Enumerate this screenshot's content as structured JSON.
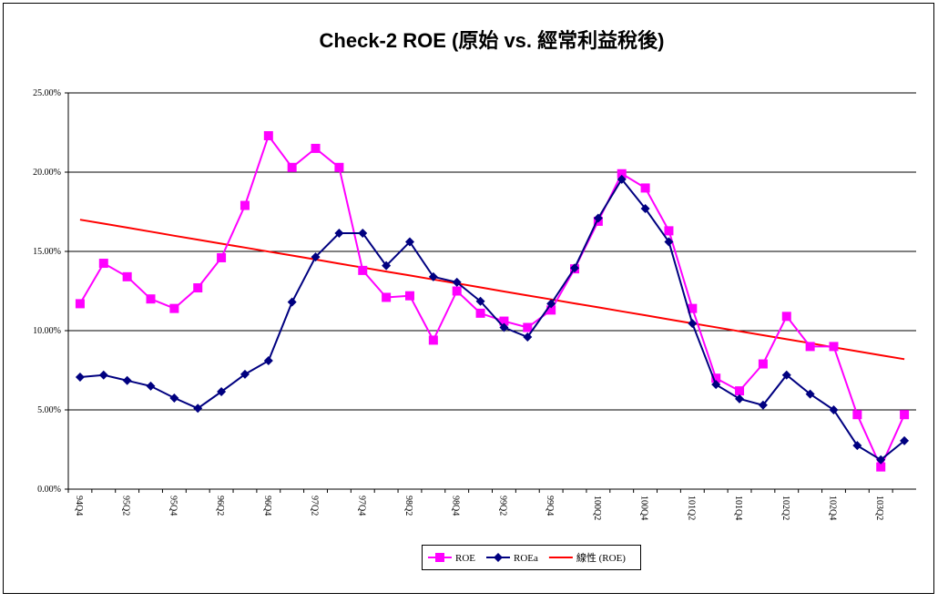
{
  "chart_data": {
    "type": "line",
    "title": "Check-2 ROE (原始 vs. 經常利益稅後)",
    "categories": [
      "94Q4",
      null,
      "95Q2",
      null,
      "95Q4",
      null,
      "96Q2",
      null,
      "96Q4",
      null,
      "97Q2",
      null,
      "97Q4",
      null,
      "98Q2",
      null,
      "98Q4",
      null,
      "99Q2",
      null,
      "99Q4",
      null,
      "100Q2",
      null,
      "100Q4",
      null,
      "101Q2",
      null,
      "101Q4",
      null,
      "102Q2",
      null,
      "102Q4",
      null,
      "103Q2",
      null
    ],
    "series": [
      {
        "name": "ROE",
        "color": "#ff00ff",
        "marker": "square",
        "values": [
          11.7,
          14.25,
          13.4,
          12.0,
          11.4,
          12.7,
          14.6,
          17.9,
          22.3,
          20.3,
          21.5,
          20.3,
          13.8,
          12.1,
          12.2,
          9.4,
          12.5,
          11.1,
          10.6,
          10.2,
          11.3,
          13.9,
          16.9,
          19.9,
          19.0,
          16.3,
          11.4,
          7.0,
          6.2,
          7.9,
          10.9,
          9.0,
          9.0,
          4.7,
          1.4,
          4.7
        ]
      },
      {
        "name": "ROEa",
        "color": "#000080",
        "marker": "diamond",
        "values": [
          7.07,
          7.2,
          6.85,
          6.5,
          5.75,
          5.1,
          6.15,
          7.25,
          8.1,
          11.8,
          14.65,
          16.15,
          16.15,
          14.1,
          15.6,
          13.4,
          13.05,
          11.85,
          10.2,
          9.6,
          11.7,
          13.95,
          17.1,
          19.55,
          17.7,
          15.6,
          10.45,
          6.6,
          5.7,
          5.3,
          7.2,
          6.0,
          5.0,
          2.75,
          1.85,
          3.05
        ]
      },
      {
        "name": "線性 (ROE)",
        "color": "#ff0000",
        "marker": "none",
        "values": [
          17.0,
          16.75,
          16.5,
          16.25,
          15.99,
          15.74,
          15.49,
          15.24,
          14.99,
          14.74,
          14.49,
          14.23,
          13.98,
          13.73,
          13.48,
          13.23,
          12.98,
          12.73,
          12.47,
          12.22,
          11.97,
          11.72,
          11.47,
          11.22,
          10.97,
          10.71,
          10.46,
          10.21,
          9.96,
          9.71,
          9.46,
          9.21,
          8.95,
          8.7,
          8.45,
          8.2
        ]
      }
    ],
    "ylim": [
      0,
      25
    ],
    "yticks": [
      {
        "value": 0,
        "label": "0.00%"
      },
      {
        "value": 5,
        "label": "5.00%"
      },
      {
        "value": 10,
        "label": "10.00%"
      },
      {
        "value": 15,
        "label": "15.00%"
      },
      {
        "value": 20,
        "label": "20.00%"
      },
      {
        "value": 25,
        "label": "25.00%"
      }
    ],
    "grid": true,
    "legend": "bottom"
  }
}
